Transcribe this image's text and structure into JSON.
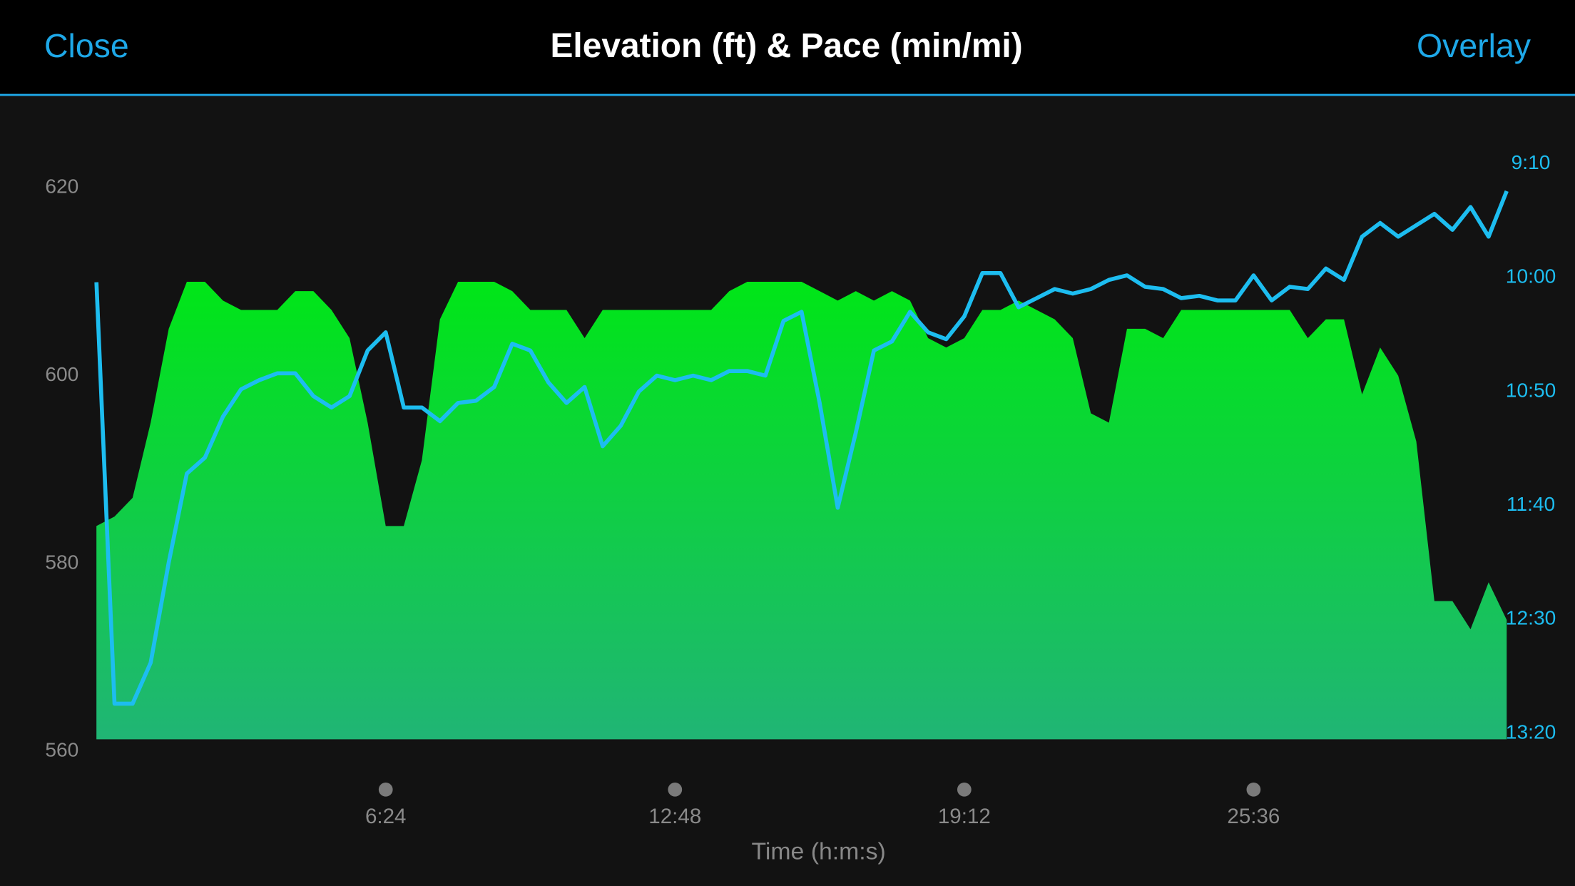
{
  "header": {
    "left_button": "Close",
    "right_button": "Overlay"
  },
  "chart_data": {
    "type": "area_line",
    "title": "Elevation (ft) & Pace (min/mi)",
    "x_label": "Time (h:m:s)",
    "xlim": [
      0,
      1872
    ],
    "xticks": [
      {
        "value": 384,
        "label": "6:24"
      },
      {
        "value": 768,
        "label": "12:48"
      },
      {
        "value": 1152,
        "label": "19:12"
      },
      {
        "value": 1536,
        "label": "25:36"
      }
    ],
    "ylim": [
      560,
      620
    ],
    "yticks": [
      560,
      580,
      600,
      620
    ],
    "y2lim": [
      550,
      800
    ],
    "y2_inverted": true,
    "y2ticks": [
      {
        "value": 550,
        "label": "9:10"
      },
      {
        "value": 600,
        "label": "10:00"
      },
      {
        "value": 650,
        "label": "10:50"
      },
      {
        "value": 700,
        "label": "11:40"
      },
      {
        "value": 750,
        "label": "12:30"
      },
      {
        "value": 800,
        "label": "13:20"
      }
    ],
    "x": [
      0,
      24,
      48,
      72,
      96,
      120,
      144,
      168,
      192,
      216,
      240,
      264,
      288,
      312,
      336,
      360,
      384,
      408,
      432,
      456,
      480,
      504,
      528,
      552,
      576,
      600,
      624,
      648,
      672,
      696,
      720,
      744,
      768,
      792,
      816,
      840,
      864,
      888,
      912,
      936,
      960,
      984,
      1008,
      1032,
      1056,
      1080,
      1104,
      1128,
      1152,
      1176,
      1200,
      1224,
      1248,
      1272,
      1296,
      1320,
      1344,
      1368,
      1392,
      1416,
      1440,
      1464,
      1488,
      1512,
      1536,
      1560,
      1584,
      1608,
      1632,
      1656,
      1680,
      1704,
      1728,
      1752,
      1776,
      1800,
      1824,
      1848,
      1872
    ],
    "series": [
      {
        "kind": "area",
        "color_top": "#00e617",
        "color_bottom": "#20b575",
        "values": [
          584,
          585,
          587,
          595,
          605,
          610,
          610,
          608,
          607,
          607,
          607,
          609,
          609,
          607,
          604,
          595,
          584,
          584,
          591,
          606,
          610,
          610,
          610,
          609,
          607,
          607,
          607,
          604,
          607,
          607,
          607,
          607,
          607,
          607,
          607,
          609,
          610,
          610,
          610,
          610,
          609,
          608,
          609,
          608,
          609,
          608,
          604,
          603,
          604,
          607,
          607,
          608,
          607,
          606,
          604,
          596,
          595,
          605,
          605,
          604,
          607,
          607,
          607,
          607,
          607,
          607,
          607,
          604,
          606,
          606,
          598,
          603,
          600,
          593,
          576,
          576,
          573,
          578,
          574
        ]
      },
      {
        "kind": "line",
        "axis": "y2",
        "color": "#1dbdf0",
        "values": [
          602,
          787,
          787,
          769,
          725,
          686,
          679,
          661,
          649,
          645,
          642,
          642,
          652,
          657,
          652,
          632,
          624,
          657,
          657,
          663,
          655,
          654,
          648,
          629,
          632,
          646,
          655,
          648,
          674,
          665,
          650,
          643,
          645,
          643,
          645,
          641,
          641,
          643,
          619,
          615,
          655,
          701,
          668,
          632,
          628,
          615,
          624,
          627,
          617,
          598,
          598,
          613,
          609,
          605,
          607,
          605,
          601,
          599,
          604,
          605,
          609,
          608,
          610,
          610,
          599,
          610,
          604,
          605,
          596,
          601,
          582,
          576,
          582,
          577,
          572,
          579,
          569,
          582,
          562
        ]
      }
    ]
  }
}
